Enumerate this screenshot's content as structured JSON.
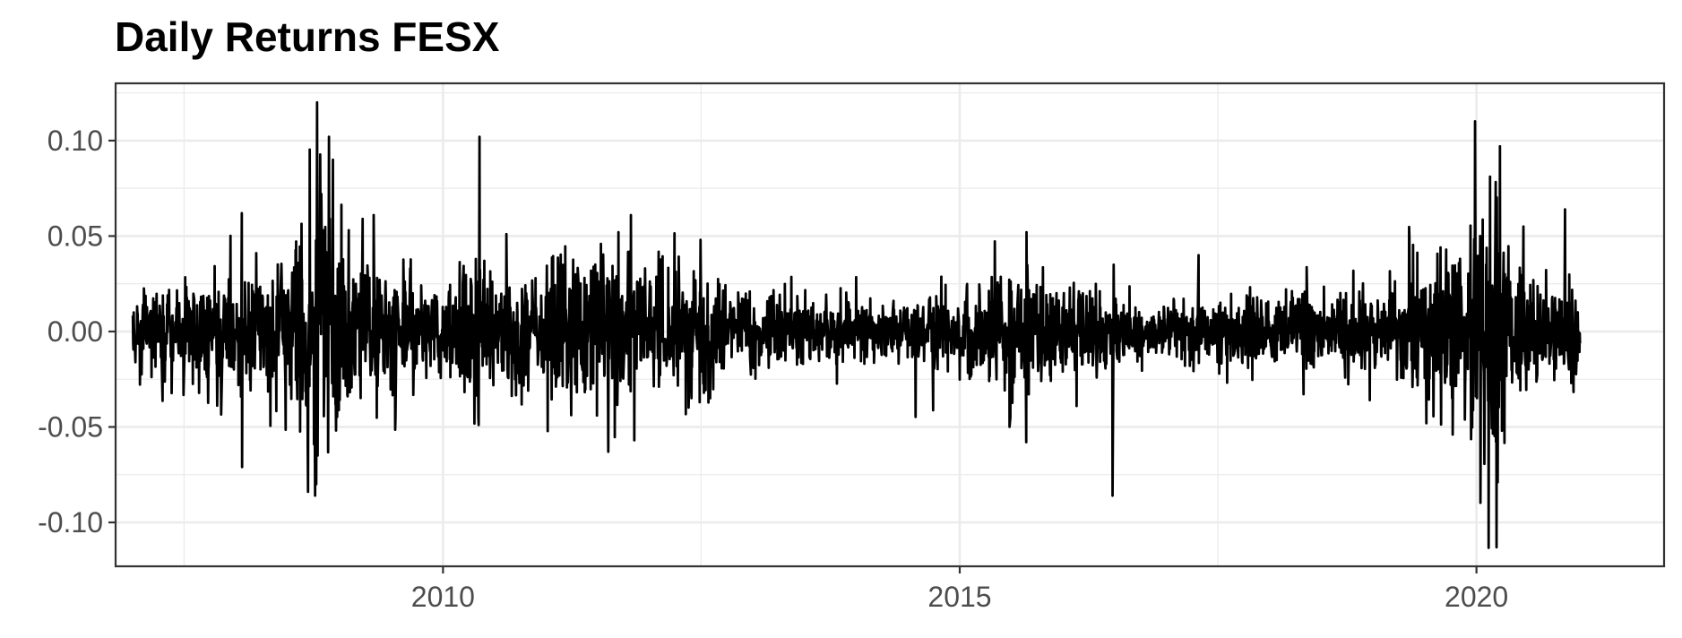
{
  "chart_data": {
    "type": "line",
    "title": "Daily Returns FESX",
    "xlabel": "",
    "ylabel": "",
    "x_range": [
      "2007-01-01",
      "2021-01-01"
    ],
    "xlim": [
      "2006-11-01",
      "2021-10-25"
    ],
    "ylim": [
      -0.123,
      0.13
    ],
    "x_ticks": [
      {
        "value": "2010-01-01",
        "label": "2010"
      },
      {
        "value": "2015-01-01",
        "label": "2015"
      },
      {
        "value": "2020-01-01",
        "label": "2020"
      }
    ],
    "x_minor_ticks": [
      "2007-07-01",
      "2012-07-01",
      "2017-07-01"
    ],
    "y_ticks": [
      {
        "value": 0.1,
        "label": "0.10"
      },
      {
        "value": 0.05,
        "label": "0.05"
      },
      {
        "value": 0.0,
        "label": "0.00"
      },
      {
        "value": -0.05,
        "label": "-0.05"
      },
      {
        "value": -0.1,
        "label": "-0.10"
      }
    ],
    "y_minor_ticks": [
      0.125,
      0.075,
      0.025,
      -0.025,
      -0.075,
      -0.125
    ],
    "grid": true,
    "legend": "none",
    "line_color": "#000000",
    "background": "#ffffff",
    "grid_color": "#ebebeb",
    "frame_color": "#333333",
    "volatility_regimes": [
      [
        "2007-01-01",
        0.009
      ],
      [
        "2007-06-01",
        0.011
      ],
      [
        "2007-12-01",
        0.016
      ],
      [
        "2008-06-01",
        0.016
      ],
      [
        "2008-09-10",
        0.04
      ],
      [
        "2008-11-15",
        0.03
      ],
      [
        "2009-03-01",
        0.02
      ],
      [
        "2009-08-01",
        0.013
      ],
      [
        "2010-01-01",
        0.011
      ],
      [
        "2010-05-01",
        0.019
      ],
      [
        "2010-07-01",
        0.012
      ],
      [
        "2011-07-25",
        0.022
      ],
      [
        "2011-11-15",
        0.016
      ],
      [
        "2012-06-01",
        0.015
      ],
      [
        "2013-01-01",
        0.01
      ],
      [
        "2014-06-01",
        0.008
      ],
      [
        "2014-12-01",
        0.011
      ],
      [
        "2015-06-15",
        0.016
      ],
      [
        "2016-03-01",
        0.012
      ],
      [
        "2016-07-01",
        0.009
      ],
      [
        "2017-01-01",
        0.006
      ],
      [
        "2018-01-20",
        0.009
      ],
      [
        "2018-10-01",
        0.011
      ],
      [
        "2019-01-15",
        0.008
      ],
      [
        "2020-02-24",
        0.035
      ],
      [
        "2020-05-01",
        0.02
      ],
      [
        "2020-07-01",
        0.013
      ],
      [
        "2021-01-01",
        0.012
      ]
    ],
    "notable_returns": [
      {
        "date": "2008-01-21",
        "value": 0.062
      },
      {
        "date": "2008-01-22",
        "value": -0.071
      },
      {
        "date": "2008-10-06",
        "value": -0.086
      },
      {
        "date": "2008-10-10",
        "value": -0.08
      },
      {
        "date": "2008-10-13",
        "value": 0.12
      },
      {
        "date": "2008-10-14",
        "value": 0.045
      },
      {
        "date": "2008-10-15",
        "value": -0.065
      },
      {
        "date": "2008-10-28",
        "value": 0.072
      },
      {
        "date": "2008-11-24",
        "value": 0.102
      },
      {
        "date": "2008-12-08",
        "value": 0.09
      },
      {
        "date": "2009-03-23",
        "value": 0.059
      },
      {
        "date": "2009-05-01",
        "value": 0.061
      },
      {
        "date": "2010-05-06",
        "value": -0.045
      },
      {
        "date": "2010-05-07",
        "value": -0.049
      },
      {
        "date": "2010-05-10",
        "value": 0.102
      },
      {
        "date": "2011-08-08",
        "value": -0.063
      },
      {
        "date": "2011-09-13",
        "value": 0.052
      },
      {
        "date": "2011-10-27",
        "value": 0.061
      },
      {
        "date": "2011-11-08",
        "value": -0.057
      },
      {
        "date": "2012-06-29",
        "value": 0.048
      },
      {
        "date": "2015-06-29",
        "value": -0.045
      },
      {
        "date": "2015-08-24",
        "value": -0.058
      },
      {
        "date": "2015-08-25",
        "value": 0.052
      },
      {
        "date": "2016-06-24",
        "value": -0.086
      },
      {
        "date": "2016-06-28",
        "value": 0.035
      },
      {
        "date": "2017-04-24",
        "value": 0.04
      },
      {
        "date": "2018-12-20",
        "value": -0.036
      },
      {
        "date": "2020-03-12",
        "value": -0.113
      },
      {
        "date": "2020-03-16",
        "value": -0.079
      },
      {
        "date": "2020-03-24",
        "value": 0.097
      },
      {
        "date": "2020-03-31",
        "value": -0.052
      },
      {
        "date": "2020-06-15",
        "value": 0.055
      },
      {
        "date": "2020-11-09",
        "value": 0.064
      },
      {
        "date": "2020-12-01",
        "value": -0.027
      }
    ]
  }
}
